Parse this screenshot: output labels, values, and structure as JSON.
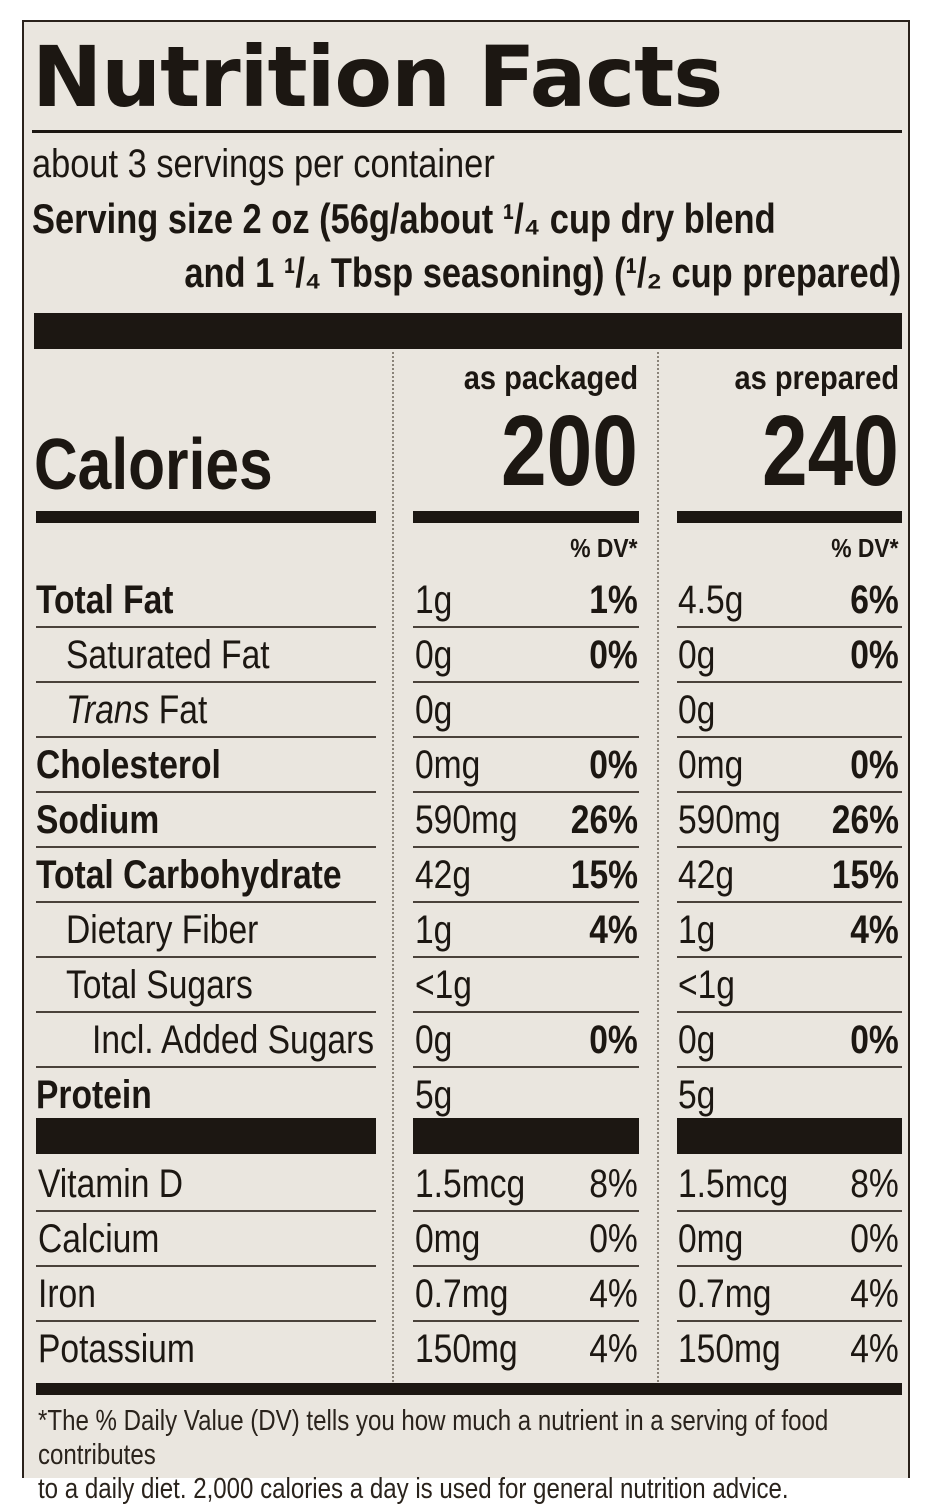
{
  "title": "Nutrition Facts",
  "servings_per_container": "about 3 servings per container",
  "serving_size_line1": "Serving size  2 oz (56g/about ¹/₄ cup dry blend",
  "serving_size_line2": "and 1 ¹/₄ Tbsp seasoning) (¹/₂ cup prepared)",
  "columns": {
    "packaged": {
      "header": "as packaged",
      "calories": "200",
      "dv_header": "% DV*"
    },
    "prepared": {
      "header": "as prepared",
      "calories": "240",
      "dv_header": "% DV*"
    }
  },
  "calories_label": "Calories",
  "nutrients": [
    {
      "name": "Total Fat",
      "style": "bold",
      "indent": 0,
      "pkg_amt": "1g",
      "pkg_dv": "1%",
      "prep_amt": "4.5g",
      "prep_dv": "6%"
    },
    {
      "name": "Saturated Fat",
      "style": "normal",
      "indent": 1,
      "pkg_amt": "0g",
      "pkg_dv": "0%",
      "prep_amt": "0g",
      "prep_dv": "0%"
    },
    {
      "name_italic": "Trans",
      "name": " Fat",
      "style": "normal",
      "indent": 1,
      "pkg_amt": "0g",
      "pkg_dv": "",
      "prep_amt": "0g",
      "prep_dv": ""
    },
    {
      "name": "Cholesterol",
      "style": "bold",
      "indent": 0,
      "pkg_amt": "0mg",
      "pkg_dv": "0%",
      "prep_amt": "0mg",
      "prep_dv": "0%"
    },
    {
      "name": "Sodium",
      "style": "bold",
      "indent": 0,
      "pkg_amt": "590mg",
      "pkg_dv": "26%",
      "prep_amt": "590mg",
      "prep_dv": "26%"
    },
    {
      "name": "Total Carbohydrate",
      "style": "bold",
      "indent": 0,
      "pkg_amt": "42g",
      "pkg_dv": "15%",
      "prep_amt": "42g",
      "prep_dv": "15%"
    },
    {
      "name": "Dietary Fiber",
      "style": "normal",
      "indent": 1,
      "pkg_amt": "1g",
      "pkg_dv": "4%",
      "prep_amt": "1g",
      "prep_dv": "4%"
    },
    {
      "name": "Total Sugars",
      "style": "normal",
      "indent": 1,
      "pkg_amt": "<1g",
      "pkg_dv": "",
      "prep_amt": "<1g",
      "prep_dv": ""
    },
    {
      "name": "Incl. Added Sugars",
      "style": "normal",
      "indent": 2,
      "pkg_amt": "0g",
      "pkg_dv": "0%",
      "prep_amt": "0g",
      "prep_dv": "0%"
    },
    {
      "name": "Protein",
      "style": "bold",
      "indent": 0,
      "pkg_amt": "5g",
      "pkg_dv": "",
      "prep_amt": "5g",
      "prep_dv": ""
    }
  ],
  "vitamins": [
    {
      "name": "Vitamin D",
      "pkg_amt": "1.5mcg",
      "pkg_dv": "8%",
      "prep_amt": "1.5mcg",
      "prep_dv": "8%"
    },
    {
      "name": "Calcium",
      "pkg_amt": "0mg",
      "pkg_dv": "0%",
      "prep_amt": "0mg",
      "prep_dv": "0%"
    },
    {
      "name": "Iron",
      "pkg_amt": "0.7mg",
      "pkg_dv": "4%",
      "prep_amt": "0.7mg",
      "prep_dv": "4%"
    },
    {
      "name": "Potassium",
      "pkg_amt": "150mg",
      "pkg_dv": "4%",
      "prep_amt": "150mg",
      "prep_dv": "4%"
    }
  ],
  "footnote_line1": "*The % Daily Value (DV) tells you how much a nutrient in a serving of food contributes",
  "footnote_line2": "to a daily diet. 2,000 calories a day is used for general nutrition advice.",
  "colors": {
    "panel": "#eae6df",
    "ink": "#1c1712"
  }
}
